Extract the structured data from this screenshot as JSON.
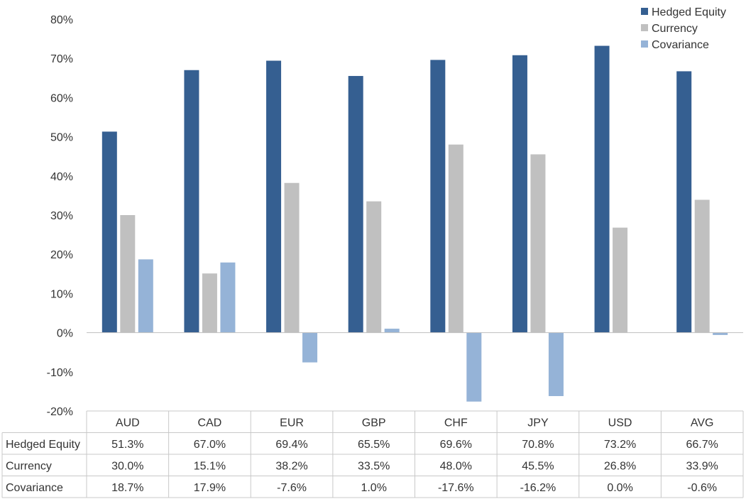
{
  "chart_data": {
    "type": "bar",
    "categories": [
      "AUD",
      "CAD",
      "EUR",
      "GBP",
      "CHF",
      "JPY",
      "USD",
      "AVG"
    ],
    "series": [
      {
        "name": "Hedged Equity",
        "values": [
          51.3,
          67.0,
          69.4,
          65.5,
          69.6,
          70.8,
          73.2,
          66.7
        ],
        "labels": [
          "51.3%",
          "67.0%",
          "69.4%",
          "65.5%",
          "69.6%",
          "70.8%",
          "73.2%",
          "66.7%"
        ],
        "color": "#355f91"
      },
      {
        "name": "Currency",
        "values": [
          30.0,
          15.1,
          38.2,
          33.5,
          48.0,
          45.5,
          26.8,
          33.9
        ],
        "labels": [
          "30.0%",
          "15.1%",
          "38.2%",
          "33.5%",
          "48.0%",
          "45.5%",
          "26.8%",
          "33.9%"
        ],
        "color": "#c0c0c0"
      },
      {
        "name": "Covariance",
        "values": [
          18.7,
          17.9,
          -7.6,
          1.0,
          -17.6,
          -16.2,
          0.0,
          -0.6
        ],
        "labels": [
          "18.7%",
          "17.9%",
          "-7.6%",
          "1.0%",
          "-17.6%",
          "-16.2%",
          "0.0%",
          "-0.6%"
        ],
        "color": "#95b3d7"
      }
    ],
    "y_ticks": [
      "80%",
      "70%",
      "60%",
      "50%",
      "40%",
      "30%",
      "20%",
      "10%",
      "0%",
      "-10%",
      "-20%"
    ],
    "ylim": [
      -20,
      80
    ],
    "unit": "%",
    "grid": false,
    "legend": "top-right",
    "data_table": true
  }
}
